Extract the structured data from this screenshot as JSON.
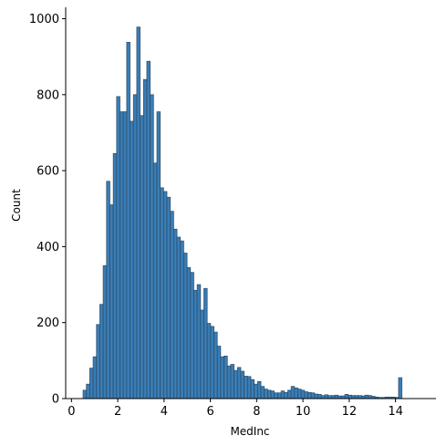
{
  "chart_data": {
    "type": "bar",
    "title": "",
    "xlabel": "MedInc",
    "ylabel": "Count",
    "xlim": [
      -0.25,
      15.75
    ],
    "ylim": [
      0,
      1030
    ],
    "xticks": [
      0,
      2,
      4,
      6,
      8,
      10,
      12,
      14
    ],
    "yticks": [
      0,
      200,
      400,
      600,
      800,
      1000
    ],
    "grid": false,
    "bin_start": 0.4999,
    "bin_width": 0.145,
    "counts": [
      22,
      38,
      80,
      110,
      195,
      248,
      350,
      572,
      510,
      645,
      795,
      755,
      755,
      938,
      730,
      800,
      978,
      745,
      840,
      888,
      800,
      620,
      755,
      555,
      545,
      530,
      493,
      446,
      425,
      415,
      383,
      345,
      332,
      285,
      300,
      233,
      290,
      198,
      190,
      175,
      138,
      110,
      112,
      86,
      90,
      74,
      82,
      72,
      59,
      58,
      50,
      38,
      45,
      32,
      25,
      22,
      20,
      15,
      15,
      20,
      16,
      22,
      32,
      28,
      25,
      22,
      18,
      16,
      15,
      12,
      11,
      8,
      10,
      8,
      8,
      9,
      7,
      7,
      11,
      9,
      8,
      8,
      8,
      7,
      9,
      8,
      6,
      4,
      3,
      3,
      4,
      4,
      4,
      3,
      55
    ],
    "bar_color": "#3a7db5"
  }
}
